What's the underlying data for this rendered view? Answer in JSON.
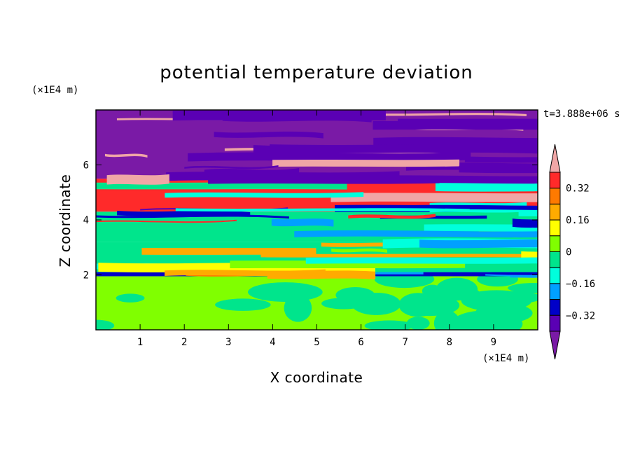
{
  "chart_data": {
    "type": "heatmap",
    "title": "potential temperature deviation",
    "xlabel": "X coordinate",
    "ylabel": "Z coordinate",
    "x_unit": "(×1E4 m)",
    "y_unit": "(×1E4 m)",
    "time_label": "t=3.888e+06 s",
    "xlim": [
      0,
      10
    ],
    "ylim": [
      0,
      8
    ],
    "x_ticks": [
      1,
      2,
      3,
      4,
      5,
      6,
      7,
      8,
      9
    ],
    "y_ticks": [
      2,
      4,
      6
    ],
    "x_tick_labels": [
      "1",
      "2",
      "3",
      "4",
      "5",
      "6",
      "7",
      "8",
      "9"
    ],
    "y_tick_labels": [
      "2",
      "4",
      "6"
    ],
    "colorbar": {
      "levels": [
        -0.48,
        -0.4,
        -0.32,
        -0.24,
        -0.16,
        -0.08,
        0,
        0.08,
        0.16,
        0.24,
        0.32,
        0.4,
        0.48
      ],
      "tick_values": [
        0.32,
        0.16,
        0,
        -0.16,
        -0.32
      ],
      "tick_labels": [
        "0.32",
        "0.16",
        "0",
        "−0.16",
        "−0.32"
      ],
      "colors_top_to_bottom": [
        "#f0a6a6",
        "#ff2a2a",
        "#ff7a00",
        "#ffab00",
        "#ffff00",
        "#80ff00",
        "#00e58c",
        "#00ffdc",
        "#00a0ff",
        "#0000c8",
        "#5a00b4",
        "#7a1aa6"
      ],
      "extend": "both"
    },
    "bands": [
      {
        "z": [
          0.0,
          1.95
        ],
        "pattern": "blobs",
        "colors": [
          "#80ff00",
          "#00e58c"
        ]
      },
      {
        "z": [
          1.95,
          2.1
        ],
        "pattern": "stripes",
        "colors": [
          "#0000c8",
          "#00a0ff",
          "#ff7a00"
        ]
      },
      {
        "z": [
          2.1,
          3.2
        ],
        "pattern": "stripes",
        "colors": [
          "#00e58c",
          "#ffff00",
          "#80ff00",
          "#00ffdc",
          "#ffab00"
        ]
      },
      {
        "z": [
          3.2,
          4.3
        ],
        "pattern": "stripes",
        "colors": [
          "#00e58c",
          "#0000c8",
          "#00a0ff",
          "#ff2a2a",
          "#80ff00",
          "#00ffdc"
        ]
      },
      {
        "z": [
          4.3,
          5.5
        ],
        "pattern": "stripes",
        "colors": [
          "#ff2a2a",
          "#00e58c",
          "#5a00b4",
          "#f0a6a6",
          "#00ffdc",
          "#0000c8"
        ]
      },
      {
        "z": [
          5.5,
          8.0
        ],
        "pattern": "stripes",
        "colors": [
          "#7a1aa6",
          "#f0a6a6",
          "#5a00b4"
        ]
      }
    ]
  }
}
